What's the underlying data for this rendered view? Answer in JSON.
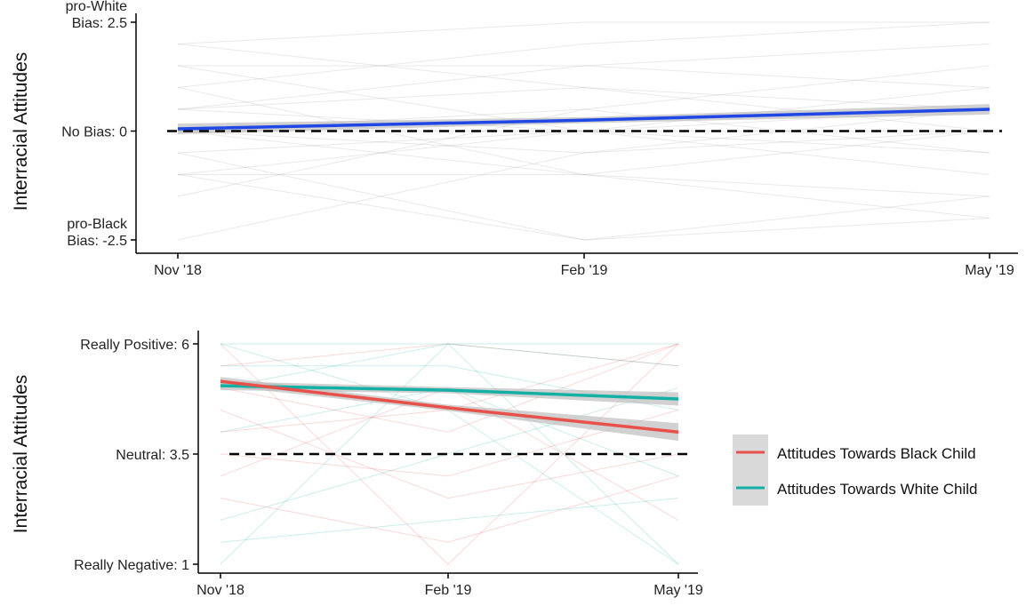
{
  "colors": {
    "mean_top": "#1f47e6",
    "black_child": "#e8504a",
    "white_child": "#14b0a6",
    "ci_band": "#bdbdbd",
    "individual": "#9a9a9a",
    "reference": "#000000"
  },
  "chart_data": [
    {
      "type": "line",
      "ylabel": "Interracial Attitudes",
      "x_ticks": [
        "Nov '18",
        "Feb '19",
        "May '19"
      ],
      "x_dates": [
        "2018-11",
        "2019-02",
        "2019-05"
      ],
      "ylim": [
        -2.5,
        2.5
      ],
      "y_ticks": [
        {
          "value": 2.5,
          "lines": [
            "pro-White",
            "Bias: 2.5"
          ]
        },
        {
          "value": 0,
          "lines": [
            "No Bias: 0"
          ]
        },
        {
          "value": -2.5,
          "lines": [
            "pro-Black",
            "Bias: -2.5"
          ]
        }
      ],
      "reference_line": {
        "y": 0,
        "style": "dashed"
      },
      "series": [
        {
          "values": [
            0.05,
            0.25,
            0.5
          ],
          "color": "#1f47e6",
          "ci_halfwidth": [
            0.12,
            0.07,
            0.12
          ]
        }
      ],
      "individual_trajectories": [
        [
          -2.5,
          -0.5,
          0.0
        ],
        [
          2.0,
          2.5,
          2.5
        ],
        [
          1.0,
          -1.0,
          0.0
        ],
        [
          -1.0,
          0.0,
          1.0
        ],
        [
          0.5,
          1.5,
          2.0
        ],
        [
          -0.5,
          -2.5,
          -1.5
        ],
        [
          0.0,
          0.5,
          1.5
        ],
        [
          1.5,
          0.0,
          -0.5
        ],
        [
          -1.0,
          -1.0,
          -2.0
        ],
        [
          0.5,
          0.0,
          0.5
        ],
        [
          2.0,
          1.0,
          0.0
        ],
        [
          -1.5,
          0.5,
          -0.5
        ],
        [
          0.0,
          -1.0,
          -1.5
        ],
        [
          1.0,
          2.0,
          2.5
        ],
        [
          -0.5,
          0.0,
          0.0
        ],
        [
          0.5,
          1.0,
          0.5
        ],
        [
          0.0,
          -0.5,
          0.5
        ],
        [
          -1.0,
          -2.5,
          -2.0
        ],
        [
          1.5,
          1.5,
          1.0
        ],
        [
          0.0,
          0.0,
          -1.0
        ]
      ],
      "grid": false,
      "legend": "none"
    },
    {
      "type": "line",
      "ylabel": "Interracial Attitudes",
      "x_ticks": [
        "Nov '18",
        "Feb '19",
        "May '19"
      ],
      "x_dates": [
        "2018-11",
        "2019-02",
        "2019-05"
      ],
      "ylim": [
        1,
        6
      ],
      "y_ticks": [
        {
          "value": 6,
          "lines": [
            "Really Positive: 6"
          ]
        },
        {
          "value": 3.5,
          "lines": [
            "Neutral: 3.5"
          ]
        },
        {
          "value": 1,
          "lines": [
            "Really Negative: 1"
          ]
        }
      ],
      "reference_line": {
        "y": 3.5,
        "style": "dashed"
      },
      "series": [
        {
          "name": "Attitudes Towards Black Child",
          "values": [
            5.15,
            4.55,
            4.0
          ],
          "color": "#e8504a",
          "ci_halfwidth": [
            0.1,
            0.07,
            0.2
          ]
        },
        {
          "name": "Attitudes Towards White Child",
          "values": [
            5.05,
            4.95,
            4.75
          ],
          "color": "#14b0a6",
          "ci_halfwidth": [
            0.1,
            0.07,
            0.15
          ]
        }
      ],
      "individual_trajectories": [
        [
          6.0,
          6.0,
          6.0
        ],
        [
          5.5,
          6.0,
          5.5
        ],
        [
          1.0,
          6.0,
          1.0
        ],
        [
          6.0,
          1.0,
          6.0
        ],
        [
          4.0,
          5.0,
          3.0
        ],
        [
          5.0,
          4.0,
          6.0
        ],
        [
          2.0,
          3.5,
          5.0
        ],
        [
          3.0,
          5.0,
          2.0
        ],
        [
          5.5,
          5.5,
          4.5
        ],
        [
          4.5,
          2.5,
          3.5
        ],
        [
          6.0,
          4.5,
          1.0
        ],
        [
          2.5,
          1.5,
          3.0
        ],
        [
          5.0,
          6.0,
          5.5
        ],
        [
          3.5,
          3.0,
          4.5
        ],
        [
          1.5,
          2.0,
          2.5
        ],
        [
          4.0,
          4.5,
          6.0
        ]
      ],
      "grid": false,
      "legend": "right"
    }
  ]
}
